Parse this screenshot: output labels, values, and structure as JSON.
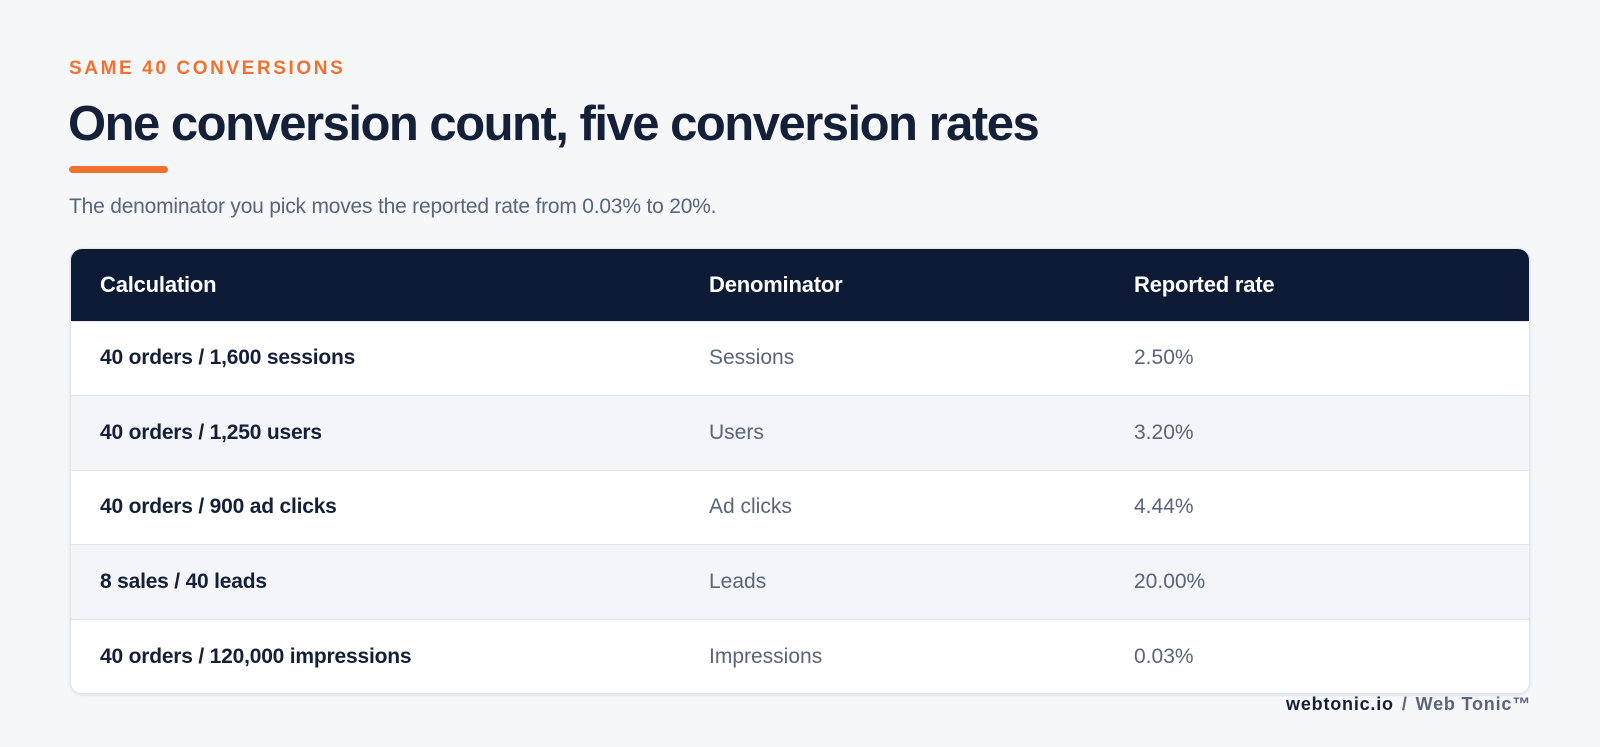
{
  "header": {
    "eyebrow": "SAME 40 CONVERSIONS",
    "title": "One conversion count, five conversion rates",
    "subtitle": "The denominator you pick moves the reported rate from 0.03% to 20%."
  },
  "table": {
    "columns": [
      "Calculation",
      "Denominator",
      "Reported rate"
    ],
    "rows": [
      {
        "calculation": "40 orders / 1,600 sessions",
        "denominator": "Sessions",
        "rate": "2.50%"
      },
      {
        "calculation": "40 orders / 1,250 users",
        "denominator": "Users",
        "rate": "3.20%"
      },
      {
        "calculation": "40 orders / 900 ad clicks",
        "denominator": "Ad clicks",
        "rate": "4.44%"
      },
      {
        "calculation": "8 sales / 40 leads",
        "denominator": "Leads",
        "rate": "20.00%"
      },
      {
        "calculation": "40 orders / 120,000 impressions",
        "denominator": "Impressions",
        "rate": "0.03%"
      }
    ]
  },
  "footer": {
    "domain": "webtonic.io",
    "separator": "/",
    "brand": "Web Tonic™"
  },
  "colors": {
    "accent": "#f07130",
    "header_bg": "#0d1b36",
    "text_primary": "#141f38",
    "text_secondary": "#59657a",
    "page_bg": "#f6f7f9"
  }
}
